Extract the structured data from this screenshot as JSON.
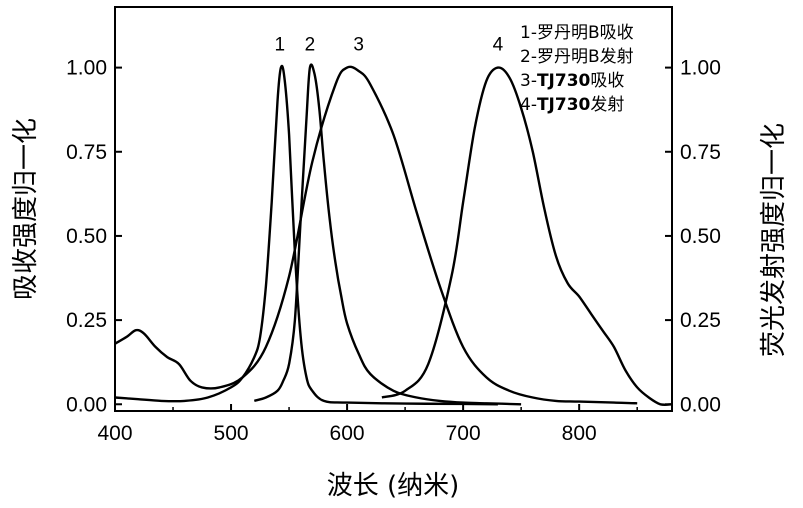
{
  "chart_data": {
    "type": "line",
    "xlabel": "波长 (纳米)",
    "ylabel_left": "吸收强度归一化",
    "ylabel_right": "荧光发射强度归一化",
    "xlim": [
      400,
      880
    ],
    "ylim": [
      -0.02,
      1.18
    ],
    "x_ticks": [
      400,
      500,
      600,
      700,
      800
    ],
    "y_ticks": [
      "0.00",
      "0.25",
      "0.50",
      "0.75",
      "1.00"
    ],
    "y_tick_values": [
      0,
      0.25,
      0.5,
      0.75,
      1.0
    ],
    "legend": {
      "placement": "top-right",
      "items": [
        {
          "id": "1",
          "prefix": "1-",
          "bold": "",
          "text": "罗丹明B吸收"
        },
        {
          "id": "2",
          "prefix": "2-",
          "bold": "",
          "text": "罗丹明B发射"
        },
        {
          "id": "3",
          "prefix": "3-",
          "bold": "TJ730",
          "text": "吸收"
        },
        {
          "id": "4",
          "prefix": "4-",
          "bold": "TJ730",
          "text": "发射"
        }
      ]
    },
    "series": [
      {
        "label": "1",
        "x": [
          400,
          420,
          440,
          460,
          480,
          500,
          510,
          520,
          525,
          530,
          535,
          540,
          543,
          546,
          550,
          555,
          560,
          565,
          570,
          580,
          600,
          650,
          700,
          730
        ],
        "y": [
          0.02,
          0.015,
          0.01,
          0.01,
          0.02,
          0.05,
          0.08,
          0.14,
          0.2,
          0.35,
          0.6,
          0.9,
          1.0,
          0.97,
          0.8,
          0.45,
          0.2,
          0.08,
          0.04,
          0.01,
          0.005,
          0.002,
          0.001,
          0.0
        ]
      },
      {
        "label": "2",
        "x": [
          520,
          530,
          540,
          545,
          550,
          555,
          560,
          565,
          568,
          572,
          576,
          580,
          585,
          590,
          595,
          600,
          610,
          620,
          640,
          660,
          680,
          700,
          720,
          750
        ],
        "y": [
          0.01,
          0.02,
          0.04,
          0.07,
          0.12,
          0.25,
          0.55,
          0.85,
          1.0,
          0.98,
          0.88,
          0.72,
          0.55,
          0.42,
          0.32,
          0.24,
          0.15,
          0.09,
          0.04,
          0.02,
          0.01,
          0.005,
          0.003,
          0.0
        ]
      },
      {
        "label": "3",
        "x": [
          400,
          410,
          418,
          425,
          435,
          445,
          455,
          465,
          475,
          490,
          510,
          530,
          550,
          570,
          590,
          600,
          610,
          620,
          640,
          660,
          680,
          700,
          720,
          740,
          760,
          780,
          800,
          830,
          850
        ],
        "y": [
          0.18,
          0.2,
          0.22,
          0.21,
          0.17,
          0.14,
          0.12,
          0.07,
          0.05,
          0.05,
          0.08,
          0.17,
          0.38,
          0.72,
          0.95,
          1.0,
          0.99,
          0.95,
          0.8,
          0.57,
          0.35,
          0.17,
          0.08,
          0.04,
          0.02,
          0.01,
          0.008,
          0.005,
          0.003
        ]
      },
      {
        "label": "4",
        "x": [
          630,
          650,
          670,
          690,
          700,
          710,
          720,
          730,
          740,
          750,
          760,
          770,
          780,
          790,
          800,
          810,
          820,
          830,
          840,
          850,
          860,
          870,
          880
        ],
        "y": [
          0.02,
          0.04,
          0.12,
          0.38,
          0.6,
          0.82,
          0.96,
          1.0,
          0.97,
          0.88,
          0.75,
          0.58,
          0.44,
          0.36,
          0.32,
          0.27,
          0.22,
          0.17,
          0.1,
          0.05,
          0.02,
          0.0,
          0.0
        ]
      }
    ],
    "peak_labels": [
      {
        "text": "1",
        "x": 542
      },
      {
        "text": "2",
        "x": 568
      },
      {
        "text": "3",
        "x": 610
      },
      {
        "text": "4",
        "x": 730
      }
    ]
  }
}
